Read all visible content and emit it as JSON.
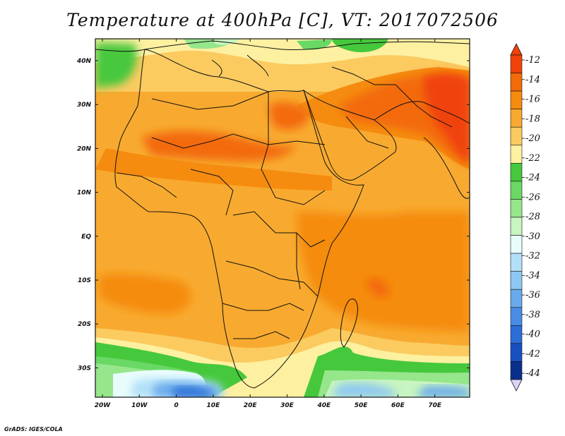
{
  "title": "Temperature at 400hPa [C], VT: 2017072506",
  "credit": "GrADS: IGES/COLA",
  "map": {
    "lon_ticks": [
      "20W",
      "10W",
      "0",
      "10E",
      "20E",
      "30E",
      "40E",
      "50E",
      "60E",
      "70E"
    ],
    "lat_ticks": [
      "40N",
      "30N",
      "20N",
      "10N",
      "EQ",
      "10S",
      "20S",
      "30S"
    ]
  },
  "colorbar": {
    "labels": [
      "-12",
      "-14",
      "-16",
      "-18",
      "-20",
      "-22",
      "-24",
      "-26",
      "-28",
      "-30",
      "-32",
      "-34",
      "-36",
      "-38",
      "-40",
      "-42",
      "-44"
    ],
    "colors": [
      "#f0420a",
      "#f36a0a",
      "#f58c10",
      "#f8aa30",
      "#fbcb60",
      "#fdf0a0",
      "#46c83c",
      "#6ad864",
      "#96e68c",
      "#c8f5c0",
      "#e8fcfc",
      "#b2e0f8",
      "#8ec8f2",
      "#6aaaec",
      "#4a8ce4",
      "#2c6ed8",
      "#1850c0",
      "#0a2e8c"
    ],
    "arrow_top_color": "#f0420a",
    "arrow_bottom_color": "#d8d4f6"
  }
}
